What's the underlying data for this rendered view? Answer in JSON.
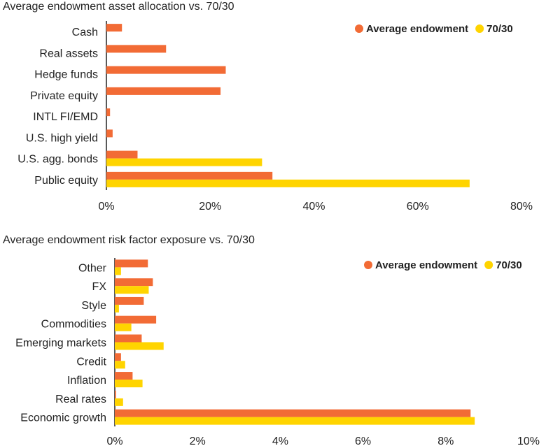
{
  "colors": {
    "average": "#f26b35",
    "seventy_thirty": "#ffd400"
  },
  "chart_data": [
    {
      "type": "bar",
      "orientation": "horizontal",
      "title": "Average endowment asset allocation vs. 70/30",
      "categories": [
        "Cash",
        "Real assets",
        "Hedge funds",
        "Private equity",
        "INTL FI/EMD",
        "U.S. high yield",
        "U.S. agg. bonds",
        "Public equity"
      ],
      "series": [
        {
          "name": "Average endowment",
          "values": [
            3,
            11.5,
            23,
            22,
            0.7,
            1.2,
            6,
            32
          ]
        },
        {
          "name": "70/30",
          "values": [
            0,
            0,
            0,
            0,
            0,
            0,
            30,
            70
          ]
        }
      ],
      "xlim": [
        0,
        80
      ],
      "xticks": [
        "0%",
        "20%",
        "40%",
        "60%",
        "80%"
      ],
      "legend": "top-right",
      "grid": false
    },
    {
      "type": "bar",
      "orientation": "horizontal",
      "title": "Average endowment risk factor exposure vs. 70/30",
      "categories": [
        "Other",
        "FX",
        "Style",
        "Commodities",
        "Emerging markets",
        "Credit",
        "Inflation",
        "Real rates",
        "Economic growth"
      ],
      "series": [
        {
          "name": "Average endowment",
          "values": [
            0.8,
            0.92,
            0.7,
            1.0,
            0.65,
            0.15,
            0.43,
            0.03,
            8.6
          ]
        },
        {
          "name": "70/30",
          "values": [
            0.15,
            0.82,
            0.1,
            0.4,
            1.18,
            0.25,
            0.67,
            0.2,
            8.7
          ]
        }
      ],
      "xlim": [
        0,
        10
      ],
      "xticks": [
        "0%",
        "2%",
        "4%",
        "6%",
        "8%",
        "10%"
      ],
      "legend": "top-right",
      "grid": false
    }
  ]
}
